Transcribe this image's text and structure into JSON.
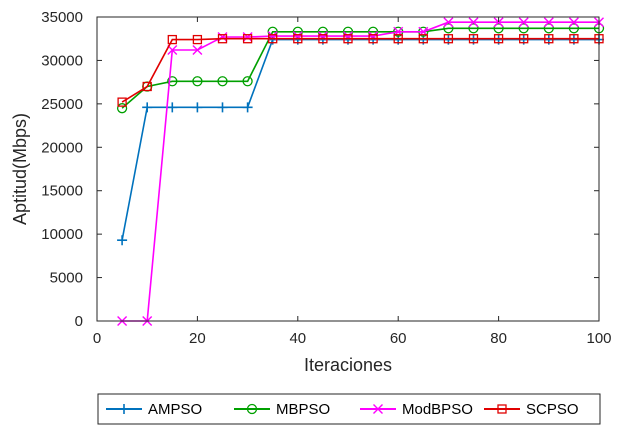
{
  "chart_data": {
    "type": "line",
    "title": "",
    "xlabel": "Iteraciones",
    "ylabel": "Aptitud(Mbps)",
    "xlim": [
      0,
      100
    ],
    "ylim": [
      0,
      35000
    ],
    "xticks": [
      0,
      20,
      40,
      60,
      80,
      100
    ],
    "yticks": [
      0,
      5000,
      10000,
      15000,
      20000,
      25000,
      30000,
      35000
    ],
    "legend_position": "bottom",
    "grid": false,
    "x": [
      5,
      10,
      15,
      20,
      25,
      30,
      35,
      40,
      45,
      50,
      55,
      60,
      65,
      70,
      75,
      80,
      85,
      90,
      95,
      100
    ],
    "series": [
      {
        "name": "AMPSO",
        "color": "#0072BD",
        "marker": "plus",
        "values": [
          9300,
          24600,
          24600,
          24600,
          24600,
          24600,
          32400,
          32400,
          32400,
          32400,
          32400,
          32400,
          32400,
          32400,
          32400,
          32400,
          32400,
          32400,
          32400,
          32400
        ]
      },
      {
        "name": "MBPSO",
        "color": "#00A000",
        "marker": "circle",
        "values": [
          24500,
          27000,
          27600,
          27600,
          27600,
          27600,
          33300,
          33300,
          33300,
          33300,
          33300,
          33300,
          33300,
          33700,
          33700,
          33700,
          33700,
          33700,
          33700,
          33700
        ]
      },
      {
        "name": "ModBPSO",
        "color": "#FF00FF",
        "marker": "x",
        "values": [
          0,
          0,
          31200,
          31200,
          32700,
          32700,
          32800,
          32800,
          32800,
          32800,
          32800,
          33300,
          33300,
          34400,
          34400,
          34400,
          34400,
          34400,
          34400,
          34400
        ]
      },
      {
        "name": "SCPSO",
        "color": "#E00000",
        "marker": "square",
        "values": [
          25200,
          27000,
          32400,
          32400,
          32500,
          32500,
          32500,
          32500,
          32500,
          32500,
          32500,
          32500,
          32500,
          32500,
          32500,
          32500,
          32500,
          32500,
          32500,
          32500
        ]
      }
    ]
  }
}
